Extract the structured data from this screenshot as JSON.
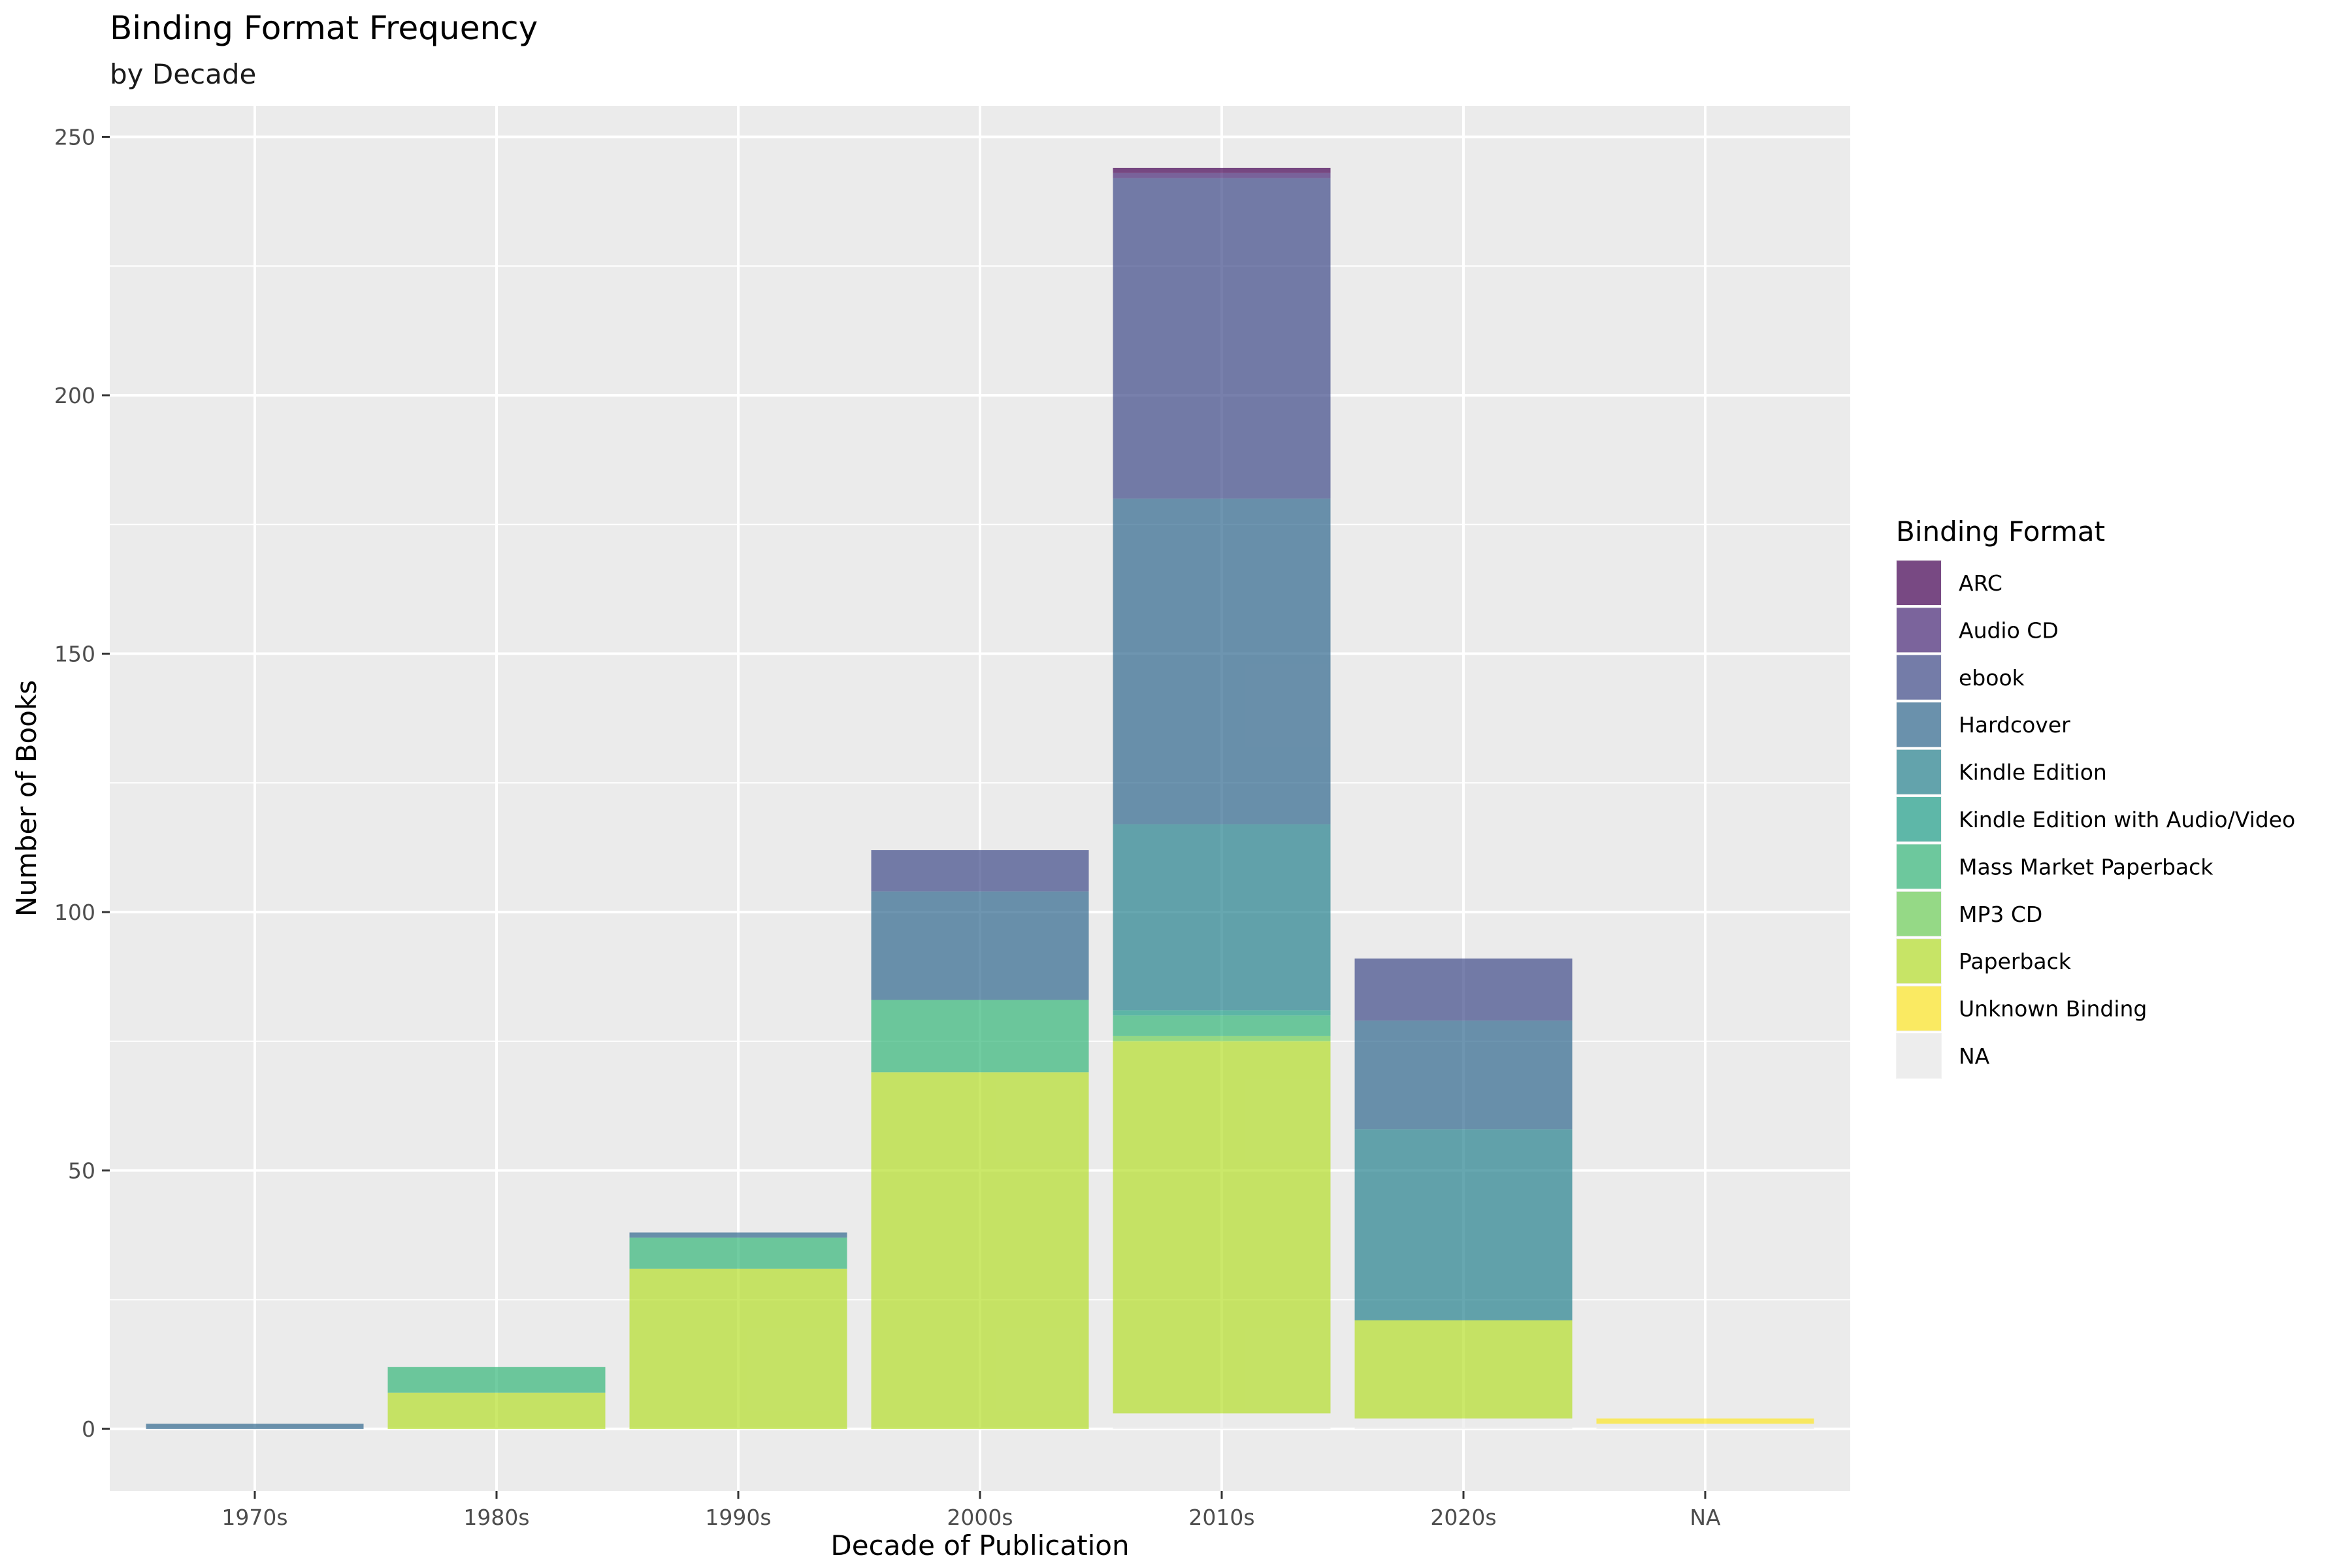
{
  "chart_data": {
    "type": "bar",
    "stacked": true,
    "title": "Binding Format Frequency",
    "subtitle": "by Decade",
    "xlabel": "Decade of Publication",
    "ylabel": "Number of Books",
    "categories": [
      "1970s",
      "1980s",
      "1990s",
      "2000s",
      "2010s",
      "2020s",
      "NA"
    ],
    "ylim": [
      -12,
      256
    ],
    "yticks": [
      0,
      50,
      100,
      150,
      200,
      250
    ],
    "grid": true,
    "legend": {
      "title": "Binding Format",
      "position": "right"
    },
    "series": [
      {
        "name": "ARC",
        "color": "#440154",
        "values": [
          0,
          0,
          0,
          0,
          1,
          0,
          0
        ]
      },
      {
        "name": "Audio CD",
        "color": "#482878",
        "values": [
          0,
          0,
          0,
          0,
          1,
          0,
          0
        ]
      },
      {
        "name": "ebook",
        "color": "#3e4a89",
        "values": [
          0,
          0,
          0,
          8,
          62,
          12,
          0
        ]
      },
      {
        "name": "Hardcover",
        "color": "#31688e",
        "values": [
          1,
          0,
          1,
          21,
          63,
          21,
          0
        ]
      },
      {
        "name": "Kindle Edition",
        "color": "#26828e",
        "values": [
          0,
          0,
          0,
          0,
          36,
          37,
          0
        ]
      },
      {
        "name": "Kindle Edition with Audio/Video",
        "color": "#1f9e89",
        "values": [
          0,
          0,
          0,
          0,
          1,
          0,
          0
        ]
      },
      {
        "name": "Mass Market Paperback",
        "color": "#35b779",
        "values": [
          0,
          5,
          6,
          14,
          4,
          0,
          0
        ]
      },
      {
        "name": "MP3 CD",
        "color": "#6ece58",
        "values": [
          0,
          0,
          0,
          0,
          1,
          0,
          0
        ]
      },
      {
        "name": "Paperback",
        "color": "#b5de2b",
        "values": [
          0,
          7,
          31,
          69,
          72,
          19,
          0
        ]
      },
      {
        "name": "Unknown Binding",
        "color": "#fde725",
        "values": [
          0,
          0,
          0,
          0,
          0,
          0,
          1
        ]
      },
      {
        "name": "NA",
        "color": "#ebebeb",
        "values": [
          0,
          0,
          0,
          0,
          3,
          2,
          1
        ]
      }
    ]
  }
}
